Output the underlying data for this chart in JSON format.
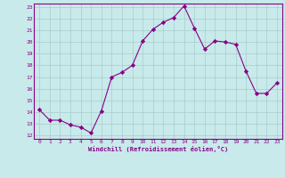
{
  "x": [
    0,
    1,
    2,
    3,
    4,
    5,
    6,
    7,
    8,
    9,
    10,
    11,
    12,
    13,
    14,
    15,
    16,
    17,
    18,
    19,
    20,
    21,
    22,
    23
  ],
  "y": [
    14.2,
    13.3,
    13.3,
    12.9,
    12.7,
    12.2,
    14.1,
    17.0,
    17.4,
    18.0,
    20.1,
    21.1,
    21.7,
    22.1,
    23.1,
    21.2,
    19.4,
    20.1,
    20.0,
    19.8,
    17.5,
    15.6,
    15.6,
    16.5
  ],
  "xlabel": "Windchill (Refroidissement éolien,°C)",
  "xlim": [
    -0.5,
    23.5
  ],
  "ylim": [
    11.7,
    23.3
  ],
  "yticks": [
    12,
    13,
    14,
    15,
    16,
    17,
    18,
    19,
    20,
    21,
    22,
    23
  ],
  "xticks": [
    0,
    1,
    2,
    3,
    4,
    5,
    6,
    7,
    8,
    9,
    10,
    11,
    12,
    13,
    14,
    15,
    16,
    17,
    18,
    19,
    20,
    21,
    22,
    23
  ],
  "line_color": "#880088",
  "marker": "D",
  "marker_size": 2.2,
  "bg_color": "#c8eaea",
  "grid_color": "#a8cccc",
  "tick_color": "#880088",
  "xlabel_color": "#880088"
}
